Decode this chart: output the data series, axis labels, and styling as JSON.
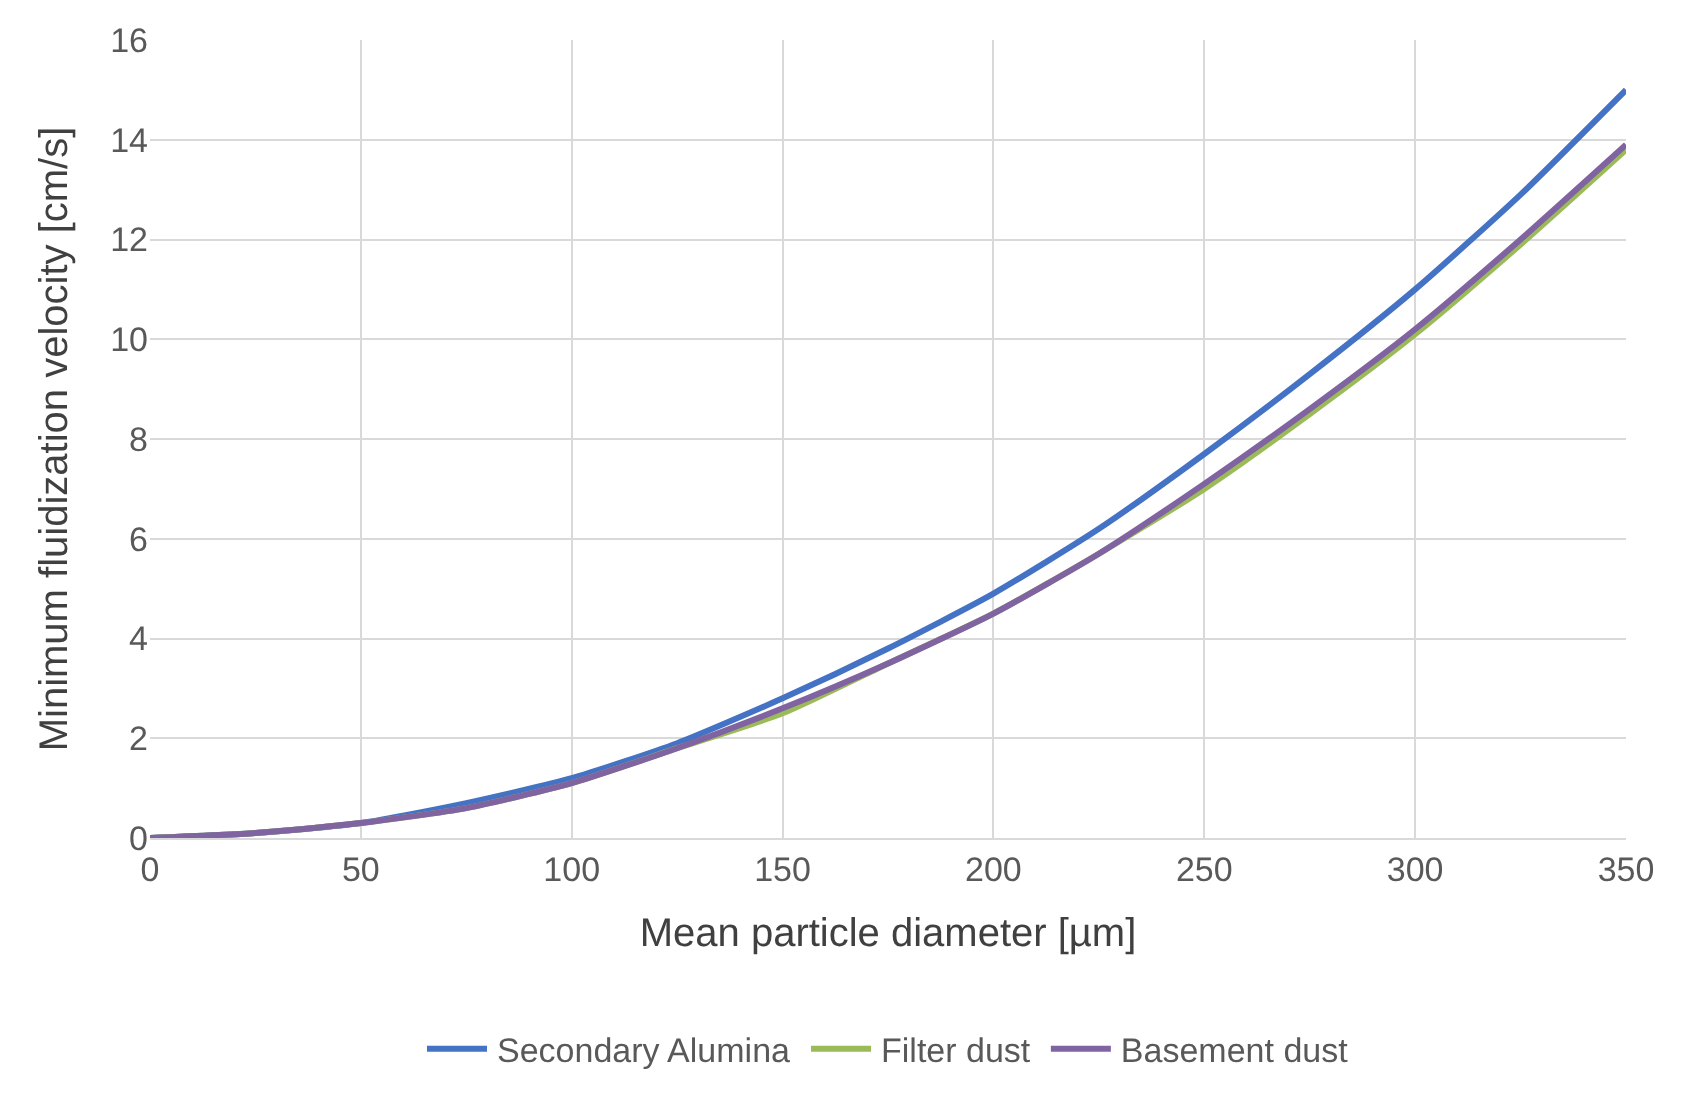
{
  "chart_data": {
    "type": "line",
    "xlabel": "Mean particle diameter [µm]",
    "ylabel": "Minimum fluidization velocity [cm/s]",
    "x": [
      0,
      25,
      50,
      75,
      100,
      125,
      150,
      175,
      200,
      225,
      250,
      275,
      300,
      325,
      350
    ],
    "series": [
      {
        "name": "Secondary Alumina",
        "color": "#4472c4",
        "values": [
          0,
          0.1,
          0.3,
          0.7,
          1.2,
          1.9,
          2.8,
          3.8,
          4.9,
          6.2,
          7.7,
          9.3,
          11.0,
          12.9,
          15.0
        ]
      },
      {
        "name": "Filter dust",
        "color": "#9bbb59",
        "values": [
          0,
          0.1,
          0.3,
          0.6,
          1.1,
          1.8,
          2.5,
          3.5,
          4.5,
          5.7,
          7.0,
          8.5,
          10.1,
          11.9,
          13.8
        ]
      },
      {
        "name": "Basement dust",
        "color": "#8064a2",
        "values": [
          0,
          0.1,
          0.3,
          0.6,
          1.1,
          1.8,
          2.6,
          3.5,
          4.5,
          5.7,
          7.1,
          8.6,
          10.2,
          12.0,
          13.9
        ]
      }
    ],
    "xlim": [
      0,
      350
    ],
    "xticks": [
      0,
      50,
      100,
      150,
      200,
      250,
      300,
      350
    ],
    "ylim": [
      0,
      16
    ],
    "yticks": [
      0,
      2,
      4,
      6,
      8,
      10,
      12,
      14,
      16
    ],
    "grid": true,
    "legend": "bottom",
    "marker": "none",
    "line_style": "solid"
  }
}
